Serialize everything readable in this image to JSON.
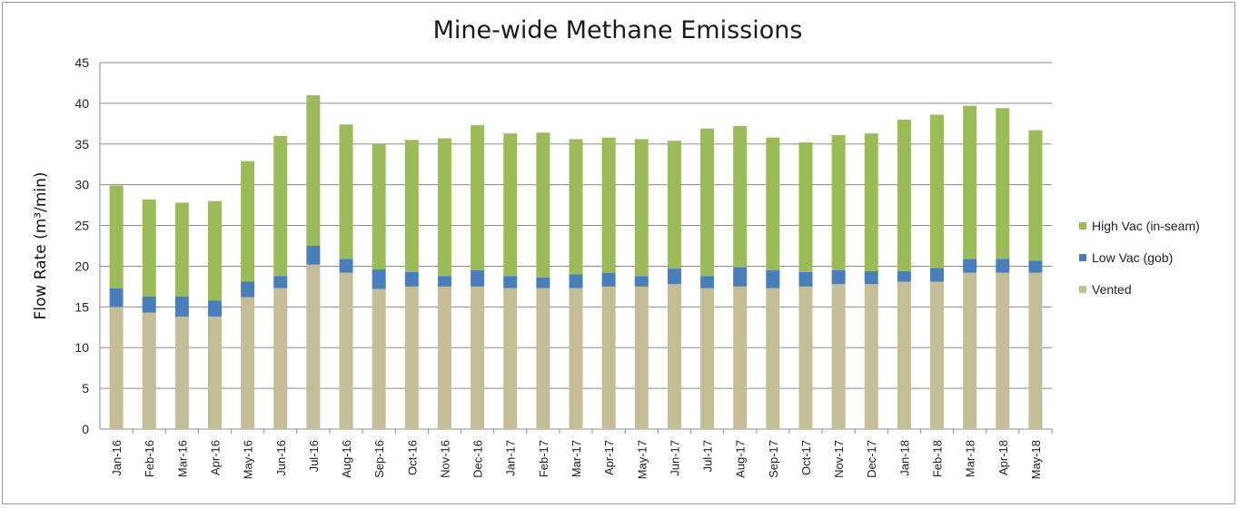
{
  "chart_data": {
    "type": "bar",
    "stacked": true,
    "title": "Mine-wide Methane Emissions",
    "ylabel": "Flow Rate (m³/min)",
    "xlabel": "",
    "ylim": [
      0,
      45
    ],
    "yticks": [
      0,
      5,
      10,
      15,
      20,
      25,
      30,
      35,
      40,
      45
    ],
    "grid": true,
    "legend_position": "right",
    "categories": [
      "Jan-16",
      "Feb-16",
      "Mar-16",
      "Apr-16",
      "May-16",
      "Jun-16",
      "Jul-16",
      "Aug-16",
      "Sep-16",
      "Oct-16",
      "Nov-16",
      "Dec-16",
      "Jan-17",
      "Feb-17",
      "Mar-17",
      "Apr-17",
      "May-17",
      "Jun-17",
      "Jul-17",
      "Aug-17",
      "Sep-17",
      "Oct-17",
      "Nov-17",
      "Dec-17",
      "Jan-18",
      "Feb-18",
      "Mar-18",
      "Apr-18",
      "May-18"
    ],
    "series": [
      {
        "name": "Vented",
        "color": "#c4bd97",
        "values": [
          15.0,
          14.3,
          13.8,
          13.8,
          16.2,
          17.3,
          20.2,
          19.2,
          17.2,
          17.5,
          17.5,
          17.5,
          17.3,
          17.3,
          17.3,
          17.5,
          17.5,
          17.8,
          17.3,
          17.5,
          17.3,
          17.5,
          17.8,
          17.8,
          18.1,
          18.1,
          19.2,
          19.2,
          19.2
        ]
      },
      {
        "name": "Low Vac (gob)",
        "color": "#4a7ebb",
        "values": [
          2.3,
          2.0,
          2.5,
          2.0,
          1.9,
          1.5,
          2.3,
          1.7,
          2.4,
          1.8,
          1.3,
          2.0,
          1.5,
          1.3,
          1.7,
          1.7,
          1.3,
          1.9,
          1.5,
          2.4,
          2.2,
          1.8,
          1.7,
          1.6,
          1.3,
          1.7,
          1.7,
          1.7,
          1.5
        ]
      },
      {
        "name": "High Vac (in-seam)",
        "color": "#9bbb59",
        "values": [
          12.6,
          11.9,
          11.5,
          12.2,
          14.8,
          17.2,
          18.5,
          16.5,
          15.4,
          16.2,
          16.9,
          17.8,
          17.5,
          17.8,
          16.6,
          16.6,
          16.8,
          15.7,
          18.1,
          17.3,
          16.3,
          15.9,
          16.6,
          16.9,
          18.6,
          18.8,
          18.8,
          18.5,
          16.0
        ]
      }
    ],
    "legend_order": [
      "High Vac (in-seam)",
      "Low Vac (gob)",
      "Vented"
    ]
  }
}
